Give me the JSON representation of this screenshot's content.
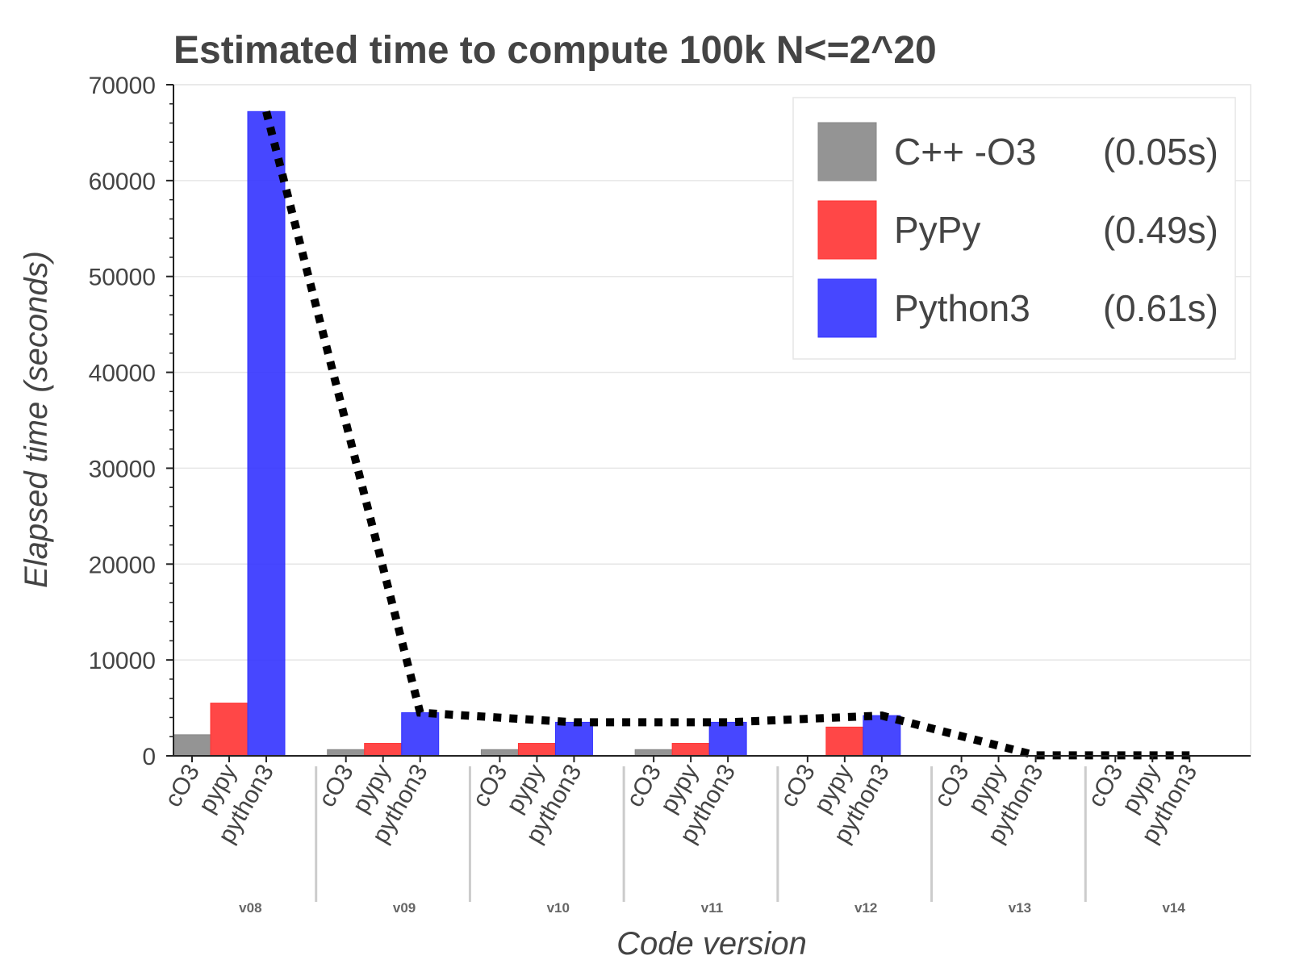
{
  "chart_data": {
    "type": "bar",
    "title": "Estimated time to compute 100k N<=2^20",
    "xlabel": "Code version",
    "ylabel": "Elapsed time (seconds)",
    "ylim": [
      0,
      70000
    ],
    "yticks": [
      "0",
      "10000",
      "20000",
      "30000",
      "40000",
      "50000",
      "60000",
      "70000"
    ],
    "categories": [
      "v08",
      "v09",
      "v10",
      "v11",
      "v12",
      "v13",
      "v14"
    ],
    "subcategories": [
      "cO3",
      "pypy",
      "python3"
    ],
    "series": [
      {
        "name": "C++ -O3 (0.05s)",
        "legend_left": "C++ -O3",
        "legend_right": "(0.05s)",
        "color": "#888888",
        "values": [
          2200,
          650,
          650,
          650,
          0,
          0,
          0
        ]
      },
      {
        "name": "PyPy (0.49s)",
        "legend_left": "PyPy",
        "legend_right": "(0.49s)",
        "color": "#ff3333",
        "values": [
          5500,
          1300,
          1300,
          1300,
          3000,
          0,
          0
        ]
      },
      {
        "name": "Python3 (0.61s)",
        "legend_left": "Python3",
        "legend_right": "(0.61s)",
        "color": "#3333ff",
        "values": [
          67200,
          4500,
          3500,
          3500,
          4200,
          0,
          0
        ]
      }
    ],
    "trend_line": {
      "style": "dotted",
      "color": "#000000",
      "values": [
        67200,
        4500,
        3500,
        3500,
        4200,
        50,
        50
      ]
    },
    "grid": true,
    "legend": "top-right"
  }
}
